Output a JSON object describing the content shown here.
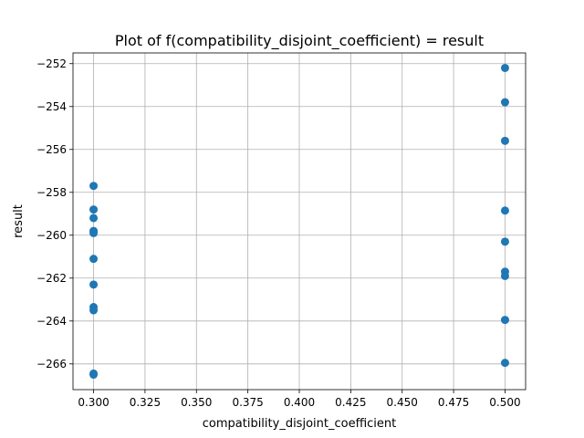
{
  "chart_data": {
    "type": "scatter",
    "title": "Plot of f(compatibility_disjoint_coefficient) = result",
    "xlabel": "compatibility_disjoint_coefficient",
    "ylabel": "result",
    "xlim": [
      0.29,
      0.51
    ],
    "ylim": [
      -267.2,
      -251.5
    ],
    "xticks": [
      0.3,
      0.325,
      0.35,
      0.375,
      0.4,
      0.425,
      0.45,
      0.475,
      0.5
    ],
    "xtick_labels": [
      "0.300",
      "0.325",
      "0.350",
      "0.375",
      "0.400",
      "0.425",
      "0.450",
      "0.475",
      "0.500"
    ],
    "yticks": [
      -266,
      -264,
      -262,
      -260,
      -258,
      -256,
      -254,
      -252
    ],
    "ytick_labels": [
      "−266",
      "−264",
      "−262",
      "−260",
      "−258",
      "−256",
      "−254",
      "−252"
    ],
    "grid": true,
    "marker_color": "#1f77b4",
    "points": [
      {
        "x": 0.3,
        "y": -257.7
      },
      {
        "x": 0.3,
        "y": -258.8
      },
      {
        "x": 0.3,
        "y": -259.2
      },
      {
        "x": 0.3,
        "y": -259.8
      },
      {
        "x": 0.3,
        "y": -259.9
      },
      {
        "x": 0.3,
        "y": -261.1
      },
      {
        "x": 0.3,
        "y": -262.3
      },
      {
        "x": 0.3,
        "y": -263.35
      },
      {
        "x": 0.3,
        "y": -263.5
      },
      {
        "x": 0.3,
        "y": -266.45
      },
      {
        "x": 0.3,
        "y": -266.5
      },
      {
        "x": 0.5,
        "y": -252.2
      },
      {
        "x": 0.5,
        "y": -253.8
      },
      {
        "x": 0.5,
        "y": -255.6
      },
      {
        "x": 0.5,
        "y": -258.85
      },
      {
        "x": 0.5,
        "y": -260.3
      },
      {
        "x": 0.5,
        "y": -261.7
      },
      {
        "x": 0.5,
        "y": -261.9
      },
      {
        "x": 0.5,
        "y": -263.95
      },
      {
        "x": 0.5,
        "y": -265.95
      }
    ]
  }
}
